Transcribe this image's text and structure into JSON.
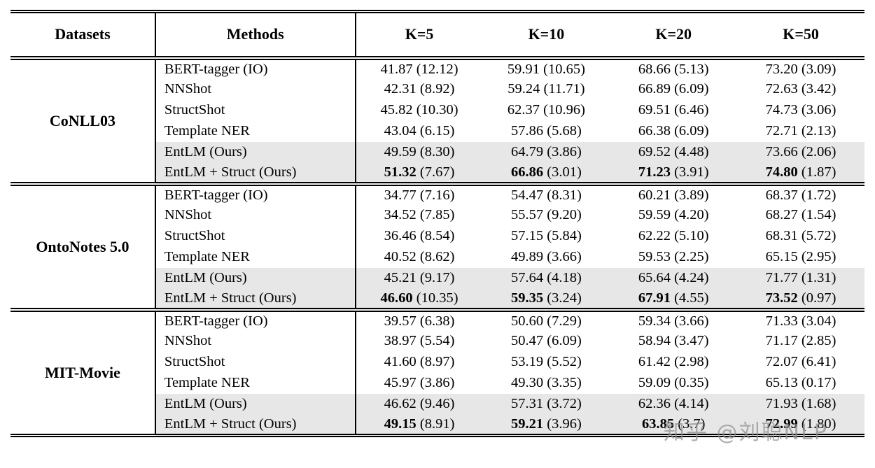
{
  "watermark": "知乎 @刘聪NLP",
  "table": {
    "headers": [
      "Datasets",
      "Methods",
      "K=5",
      "K=10",
      "K=20",
      "K=50"
    ],
    "accent_colors": {
      "row_highlight": "#e7e7e7",
      "rule": "#000000"
    },
    "groups": [
      {
        "dataset": "CoNLL03",
        "rows": [
          {
            "method": "BERT-tagger (IO)",
            "shaded": false,
            "bold": false,
            "values": [
              [
                "41.87",
                "(12.12)"
              ],
              [
                "59.91",
                "(10.65)"
              ],
              [
                "68.66",
                "(5.13)"
              ],
              [
                "73.20",
                "(3.09)"
              ]
            ]
          },
          {
            "method": "NNShot",
            "shaded": false,
            "bold": false,
            "values": [
              [
                "42.31",
                "(8.92)"
              ],
              [
                "59.24",
                "(11.71)"
              ],
              [
                "66.89",
                "(6.09)"
              ],
              [
                "72.63",
                "(3.42)"
              ]
            ]
          },
          {
            "method": "StructShot",
            "shaded": false,
            "bold": false,
            "values": [
              [
                "45.82",
                "(10.30)"
              ],
              [
                "62.37",
                "(10.96)"
              ],
              [
                "69.51",
                "(6.46)"
              ],
              [
                "74.73",
                "(3.06)"
              ]
            ]
          },
          {
            "method": "Template NER",
            "shaded": false,
            "bold": false,
            "values": [
              [
                "43.04",
                "(6.15)"
              ],
              [
                "57.86",
                "(5.68)"
              ],
              [
                "66.38",
                "(6.09)"
              ],
              [
                "72.71",
                "(2.13)"
              ]
            ]
          },
          {
            "method": "EntLM (Ours)",
            "shaded": true,
            "bold": false,
            "values": [
              [
                "49.59",
                "(8.30)"
              ],
              [
                "64.79",
                "(3.86)"
              ],
              [
                "69.52",
                "(4.48)"
              ],
              [
                "73.66",
                "(2.06)"
              ]
            ]
          },
          {
            "method": "EntLM + Struct (Ours)",
            "shaded": true,
            "bold": true,
            "values": [
              [
                "51.32",
                "(7.67)"
              ],
              [
                "66.86",
                "(3.01)"
              ],
              [
                "71.23",
                "(3.91)"
              ],
              [
                "74.80",
                "(1.87)"
              ]
            ]
          }
        ]
      },
      {
        "dataset": "OntoNotes 5.0",
        "rows": [
          {
            "method": "BERT-tagger (IO)",
            "shaded": false,
            "bold": false,
            "values": [
              [
                "34.77",
                "(7.16)"
              ],
              [
                "54.47",
                "(8.31)"
              ],
              [
                "60.21",
                "(3.89)"
              ],
              [
                "68.37",
                "(1.72)"
              ]
            ]
          },
          {
            "method": "NNShot",
            "shaded": false,
            "bold": false,
            "values": [
              [
                "34.52",
                "(7.85)"
              ],
              [
                "55.57",
                "(9.20)"
              ],
              [
                "59.59",
                "(4.20)"
              ],
              [
                "68.27",
                "(1.54)"
              ]
            ]
          },
          {
            "method": "StructShot",
            "shaded": false,
            "bold": false,
            "values": [
              [
                "36.46",
                "(8.54)"
              ],
              [
                "57.15",
                "(5.84)"
              ],
              [
                "62.22",
                "(5.10)"
              ],
              [
                "68.31",
                "(5.72)"
              ]
            ]
          },
          {
            "method": "Template NER",
            "shaded": false,
            "bold": false,
            "values": [
              [
                "40.52",
                "(8.62)"
              ],
              [
                "49.89",
                "(3.66)"
              ],
              [
                "59.53",
                "(2.25)"
              ],
              [
                "65.15",
                "(2.95)"
              ]
            ]
          },
          {
            "method": "EntLM (Ours)",
            "shaded": true,
            "bold": false,
            "values": [
              [
                "45.21",
                "(9.17)"
              ],
              [
                "57.64",
                "(4.18)"
              ],
              [
                "65.64",
                "(4.24)"
              ],
              [
                "71.77",
                "(1.31)"
              ]
            ]
          },
          {
            "method": "EntLM + Struct (Ours)",
            "shaded": true,
            "bold": true,
            "values": [
              [
                "46.60",
                "(10.35)"
              ],
              [
                "59.35",
                "(3.24)"
              ],
              [
                "67.91",
                "(4.55)"
              ],
              [
                "73.52",
                "(0.97)"
              ]
            ]
          }
        ]
      },
      {
        "dataset": "MIT-Movie",
        "rows": [
          {
            "method": "BERT-tagger (IO)",
            "shaded": false,
            "bold": false,
            "values": [
              [
                "39.57",
                "(6.38)"
              ],
              [
                "50.60",
                "(7.29)"
              ],
              [
                "59.34",
                "(3.66)"
              ],
              [
                "71.33",
                "(3.04)"
              ]
            ]
          },
          {
            "method": "NNShot",
            "shaded": false,
            "bold": false,
            "values": [
              [
                "38.97",
                "(5.54)"
              ],
              [
                "50.47",
                "(6.09)"
              ],
              [
                "58.94",
                "(3.47)"
              ],
              [
                "71.17",
                "(2.85)"
              ]
            ]
          },
          {
            "method": "StructShot",
            "shaded": false,
            "bold": false,
            "values": [
              [
                "41.60",
                "(8.97)"
              ],
              [
                "53.19",
                "(5.52)"
              ],
              [
                "61.42",
                "(2.98)"
              ],
              [
                "72.07",
                "(6.41)"
              ]
            ]
          },
          {
            "method": "Template NER",
            "shaded": false,
            "bold": false,
            "values": [
              [
                "45.97",
                "(3.86)"
              ],
              [
                "49.30",
                "(3.35)"
              ],
              [
                "59.09",
                "(0.35)"
              ],
              [
                "65.13",
                "(0.17)"
              ]
            ]
          },
          {
            "method": "EntLM (Ours)",
            "shaded": true,
            "bold": false,
            "values": [
              [
                "46.62",
                "(9.46)"
              ],
              [
                "57.31",
                "(3.72)"
              ],
              [
                "62.36",
                "(4.14)"
              ],
              [
                "71.93",
                "(1.68)"
              ]
            ]
          },
          {
            "method": "EntLM + Struct (Ours)",
            "shaded": true,
            "bold": true,
            "values": [
              [
                "49.15",
                "(8.91)"
              ],
              [
                "59.21",
                "(3.96)"
              ],
              [
                "63.85",
                "(3.7)"
              ],
              [
                "72.99",
                "(1.80)"
              ]
            ]
          }
        ]
      }
    ]
  }
}
